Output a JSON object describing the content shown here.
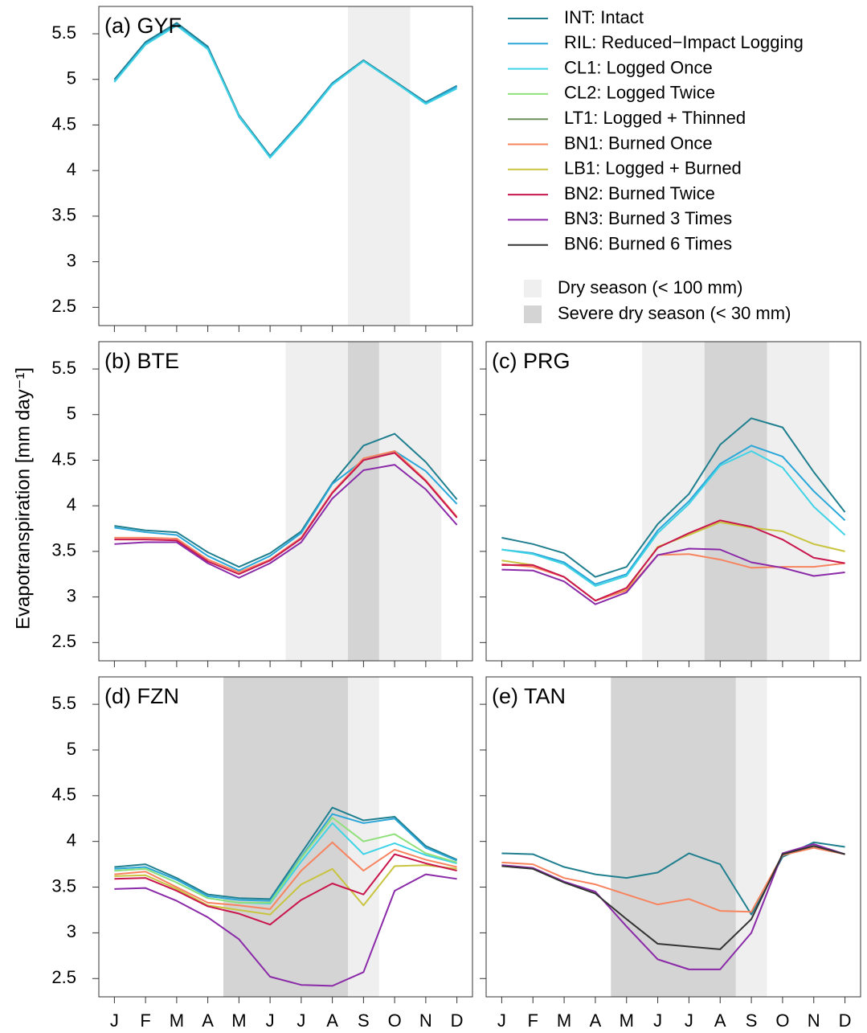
{
  "y_label": "Evapotranspiration [mm day⁻¹]",
  "legend": {
    "entries": [
      {
        "name": "INT: Intact",
        "color": "#1f7f8f"
      },
      {
        "name": "RIL: Reduced−Impact Logging",
        "color": "#2aa7d8"
      },
      {
        "name": "CL1: Logged Once",
        "color": "#3fd3e6"
      },
      {
        "name": "CL2: Logged Twice",
        "color": "#8fe07a"
      },
      {
        "name": "LT1: Logged + Thinned",
        "color": "#6b8f5a"
      },
      {
        "name": "BN1: Burned Once",
        "color": "#f7845f"
      },
      {
        "name": "LB1: Logged + Burned",
        "color": "#c9c440"
      },
      {
        "name": "BN2: Burned Twice",
        "color": "#c9164d"
      },
      {
        "name": "BN3: Burned 3 Times",
        "color": "#8a2aa8"
      },
      {
        "name": "BN6: Burned 6 Times",
        "color": "#333333"
      }
    ],
    "shading": [
      {
        "name": "Dry season (< 100 mm)",
        "color": "#efefef"
      },
      {
        "name": "Severe dry season (< 30 mm)",
        "color": "#d4d4d4"
      }
    ]
  },
  "chart_data": [
    {
      "type": "line",
      "title": "(a) GYF",
      "categories": [
        "J",
        "F",
        "M",
        "A",
        "M",
        "J",
        "J",
        "A",
        "S",
        "O",
        "N",
        "D"
      ],
      "ylim": [
        2.3,
        5.8
      ],
      "yticks": [
        2.5,
        3,
        3.5,
        4,
        4.5,
        5,
        5.5
      ],
      "x_tick_labels": false,
      "y_tick_labels": true,
      "dry_spans": [
        [
          7.5,
          9.5
        ]
      ],
      "severe_spans": [],
      "series": [
        {
          "name": "INT: Intact",
          "color": "#1f7f8f",
          "values": [
            5.0,
            5.41,
            5.62,
            5.36,
            4.61,
            4.16,
            4.54,
            4.96,
            5.21,
            4.98,
            4.75,
            4.93
          ]
        },
        {
          "name": "RIL: Reduced−Impact Logging",
          "color": "#2aa7d8",
          "values": [
            4.98,
            5.39,
            5.6,
            5.34,
            4.59,
            4.15,
            4.53,
            4.95,
            5.2,
            4.97,
            4.74,
            4.92
          ]
        },
        {
          "name": "CL1: Logged Once",
          "color": "#3fd3e6",
          "values": [
            4.97,
            5.38,
            5.59,
            5.33,
            4.6,
            4.14,
            4.52,
            4.94,
            5.2,
            4.97,
            4.73,
            4.9
          ]
        }
      ]
    },
    {
      "type": "line",
      "title": "(b) BTE",
      "categories": [
        "J",
        "F",
        "M",
        "A",
        "M",
        "J",
        "J",
        "A",
        "S",
        "O",
        "N",
        "D"
      ],
      "ylim": [
        2.3,
        5.8
      ],
      "yticks": [
        2.5,
        3,
        3.5,
        4,
        4.5,
        5,
        5.5
      ],
      "x_tick_labels": false,
      "y_tick_labels": true,
      "dry_spans": [
        [
          5.5,
          10.5
        ]
      ],
      "severe_spans": [
        [
          7.5,
          8.5
        ]
      ],
      "series": [
        {
          "name": "INT: Intact",
          "color": "#1f7f8f",
          "values": [
            3.78,
            3.73,
            3.71,
            3.49,
            3.33,
            3.48,
            3.72,
            4.25,
            4.66,
            4.79,
            4.48,
            4.07
          ]
        },
        {
          "name": "RIL: Reduced−Impact Logging",
          "color": "#2aa7d8",
          "values": [
            3.76,
            3.71,
            3.68,
            3.45,
            3.29,
            3.45,
            3.7,
            4.24,
            4.5,
            4.6,
            4.38,
            4.02
          ]
        },
        {
          "name": "BN1: Burned Once",
          "color": "#f7845f",
          "values": [
            3.65,
            3.65,
            3.64,
            3.41,
            3.27,
            3.41,
            3.65,
            4.15,
            4.52,
            4.6,
            4.28,
            3.88
          ]
        },
        {
          "name": "BN2: Burned Twice",
          "color": "#c9164d",
          "values": [
            3.63,
            3.63,
            3.62,
            3.39,
            3.25,
            3.4,
            3.64,
            4.14,
            4.5,
            4.58,
            4.27,
            3.87
          ]
        },
        {
          "name": "BN3: Burned 3 Times",
          "color": "#8a2aa8",
          "values": [
            3.58,
            3.6,
            3.6,
            3.37,
            3.21,
            3.37,
            3.6,
            4.08,
            4.39,
            4.45,
            4.18,
            3.79
          ]
        }
      ]
    },
    {
      "type": "line",
      "title": "(c) PRG",
      "categories": [
        "J",
        "F",
        "M",
        "A",
        "M",
        "J",
        "J",
        "A",
        "S",
        "O",
        "N",
        "D"
      ],
      "ylim": [
        2.3,
        5.8
      ],
      "yticks": [
        2.5,
        3,
        3.5,
        4,
        4.5,
        5,
        5.5
      ],
      "x_tick_labels": false,
      "y_tick_labels": false,
      "dry_spans": [
        [
          4.5,
          10.5
        ]
      ],
      "severe_spans": [
        [
          6.5,
          8.5
        ]
      ],
      "series": [
        {
          "name": "INT: Intact",
          "color": "#1f7f8f",
          "values": [
            3.65,
            3.58,
            3.48,
            3.22,
            3.33,
            3.8,
            4.13,
            4.67,
            4.96,
            4.86,
            4.37,
            3.93
          ]
        },
        {
          "name": "RIL: Reduced−Impact Logging",
          "color": "#2aa7d8",
          "values": [
            3.52,
            3.48,
            3.38,
            3.14,
            3.25,
            3.73,
            4.05,
            4.46,
            4.66,
            4.54,
            4.16,
            3.84
          ]
        },
        {
          "name": "CL1: Logged Once",
          "color": "#3fd3e6",
          "values": [
            3.52,
            3.47,
            3.36,
            3.12,
            3.23,
            3.7,
            4.02,
            4.44,
            4.6,
            4.42,
            3.99,
            3.68
          ]
        },
        {
          "name": "LB1: Logged + Burned",
          "color": "#c9c440",
          "values": [
            3.4,
            3.35,
            3.22,
            2.96,
            3.08,
            3.55,
            3.68,
            3.82,
            3.76,
            3.72,
            3.58,
            3.5
          ]
        },
        {
          "name": "BN1: Burned Once",
          "color": "#f7845f",
          "values": [
            3.36,
            3.33,
            3.22,
            2.96,
            3.07,
            3.46,
            3.47,
            3.41,
            3.32,
            3.33,
            3.33,
            3.37
          ]
        },
        {
          "name": "BN2: Burned Twice",
          "color": "#c9164d",
          "values": [
            3.35,
            3.35,
            3.22,
            2.96,
            3.1,
            3.54,
            3.7,
            3.84,
            3.77,
            3.63,
            3.43,
            3.37
          ]
        },
        {
          "name": "BN3: Burned 3 Times",
          "color": "#8a2aa8",
          "values": [
            3.3,
            3.29,
            3.17,
            2.92,
            3.05,
            3.46,
            3.53,
            3.52,
            3.38,
            3.32,
            3.23,
            3.27
          ]
        }
      ]
    },
    {
      "type": "line",
      "title": "(d) FZN",
      "categories": [
        "J",
        "F",
        "M",
        "A",
        "M",
        "J",
        "J",
        "A",
        "S",
        "O",
        "N",
        "D"
      ],
      "ylim": [
        2.3,
        5.8
      ],
      "yticks": [
        2.5,
        3,
        3.5,
        4,
        4.5,
        5,
        5.5
      ],
      "x_tick_labels": true,
      "y_tick_labels": true,
      "dry_spans": [
        [
          3.5,
          8.5
        ]
      ],
      "severe_spans": [
        [
          3.5,
          7.5
        ]
      ],
      "series": [
        {
          "name": "INT: Intact",
          "color": "#1f7f8f",
          "values": [
            3.72,
            3.75,
            3.6,
            3.42,
            3.38,
            3.37,
            3.87,
            4.37,
            4.23,
            4.27,
            3.95,
            3.8
          ]
        },
        {
          "name": "RIL: Reduced−Impact Logging",
          "color": "#2aa7d8",
          "values": [
            3.7,
            3.72,
            3.58,
            3.4,
            3.36,
            3.35,
            3.83,
            4.3,
            4.2,
            4.25,
            3.93,
            3.79
          ]
        },
        {
          "name": "CL1: Logged Once",
          "color": "#3fd3e6",
          "values": [
            3.68,
            3.7,
            3.55,
            3.38,
            3.33,
            3.32,
            3.78,
            4.2,
            3.86,
            3.98,
            3.85,
            3.76
          ]
        },
        {
          "name": "CL2: Logged Twice",
          "color": "#8fe07a",
          "values": [
            3.68,
            3.7,
            3.55,
            3.38,
            3.33,
            3.33,
            3.82,
            4.26,
            4.0,
            4.08,
            3.87,
            3.77
          ]
        },
        {
          "name": "BN1: Burned Once",
          "color": "#f7845f",
          "values": [
            3.64,
            3.67,
            3.5,
            3.33,
            3.3,
            3.26,
            3.68,
            3.99,
            3.68,
            3.91,
            3.8,
            3.72
          ]
        },
        {
          "name": "LB1: Logged + Burned",
          "color": "#c9c440",
          "values": [
            3.62,
            3.63,
            3.48,
            3.3,
            3.25,
            3.2,
            3.53,
            3.7,
            3.3,
            3.73,
            3.74,
            3.7
          ]
        },
        {
          "name": "BN2: Burned Twice",
          "color": "#c9164d",
          "values": [
            3.59,
            3.6,
            3.46,
            3.29,
            3.21,
            3.09,
            3.36,
            3.54,
            3.42,
            3.86,
            3.76,
            3.68
          ]
        },
        {
          "name": "BN3: Burned 3 Times",
          "color": "#8a2aa8",
          "values": [
            3.48,
            3.49,
            3.35,
            3.17,
            2.93,
            2.52,
            2.43,
            2.42,
            2.57,
            3.46,
            3.64,
            3.59
          ]
        }
      ]
    },
    {
      "type": "line",
      "title": "(e) TAN",
      "categories": [
        "J",
        "F",
        "M",
        "A",
        "M",
        "J",
        "J",
        "A",
        "S",
        "O",
        "N",
        "D"
      ],
      "ylim": [
        2.3,
        5.8
      ],
      "yticks": [
        2.5,
        3,
        3.5,
        4,
        4.5,
        5,
        5.5
      ],
      "x_tick_labels": true,
      "y_tick_labels": false,
      "dry_spans": [
        [
          3.5,
          8.5
        ]
      ],
      "severe_spans": [
        [
          3.5,
          7.5
        ]
      ],
      "series": [
        {
          "name": "INT: Intact",
          "color": "#1f7f8f",
          "values": [
            3.87,
            3.86,
            3.72,
            3.64,
            3.6,
            3.66,
            3.87,
            3.75,
            3.2,
            3.83,
            3.99,
            3.94
          ]
        },
        {
          "name": "BN1: Burned Once",
          "color": "#f7845f",
          "values": [
            3.77,
            3.75,
            3.6,
            3.53,
            3.42,
            3.31,
            3.37,
            3.24,
            3.23,
            3.85,
            3.93,
            3.86
          ]
        },
        {
          "name": "BN3: Burned 3 Times",
          "color": "#8a2aa8",
          "values": [
            3.74,
            3.71,
            3.56,
            3.45,
            3.07,
            2.71,
            2.6,
            2.6,
            3.0,
            3.87,
            3.97,
            3.86
          ]
        },
        {
          "name": "BN6: Burned 6 Times",
          "color": "#333333",
          "values": [
            3.73,
            3.7,
            3.55,
            3.43,
            3.15,
            2.88,
            2.85,
            2.82,
            3.15,
            3.86,
            3.95,
            3.86
          ]
        }
      ]
    }
  ]
}
